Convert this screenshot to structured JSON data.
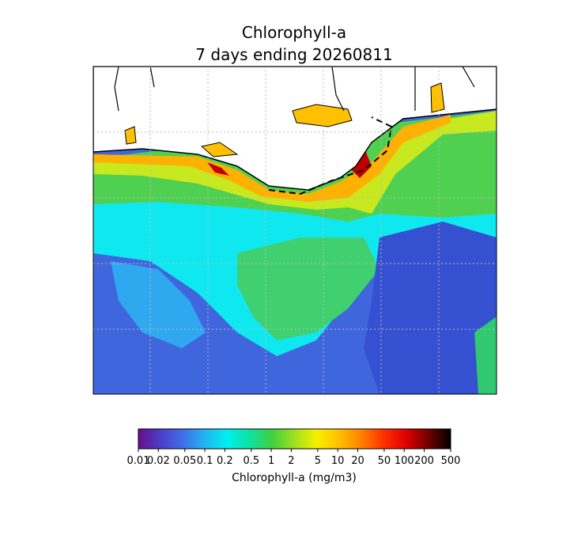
{
  "map": {
    "title": "Chlorophyll-a",
    "subtitle": "7 days ending 20260811",
    "colorbar": {
      "label": "Chlorophyll-a (mg/m3)",
      "scale": "log",
      "lim": [
        0.01,
        500
      ],
      "ticks": [
        0.01,
        0.02,
        0.05,
        0.1,
        0.2,
        0.5,
        1,
        2,
        5,
        10,
        20,
        50,
        100,
        200,
        500
      ],
      "colors": [
        "#6a0d8a",
        "#4a3fc8",
        "#3f6ee8",
        "#22b6f0",
        "#00f0f0",
        "#10e0a0",
        "#40d040",
        "#a0e020",
        "#f8f000",
        "#ffc000",
        "#ff8000",
        "#ff3000",
        "#e00000",
        "#700000",
        "#000000"
      ]
    }
  }
}
